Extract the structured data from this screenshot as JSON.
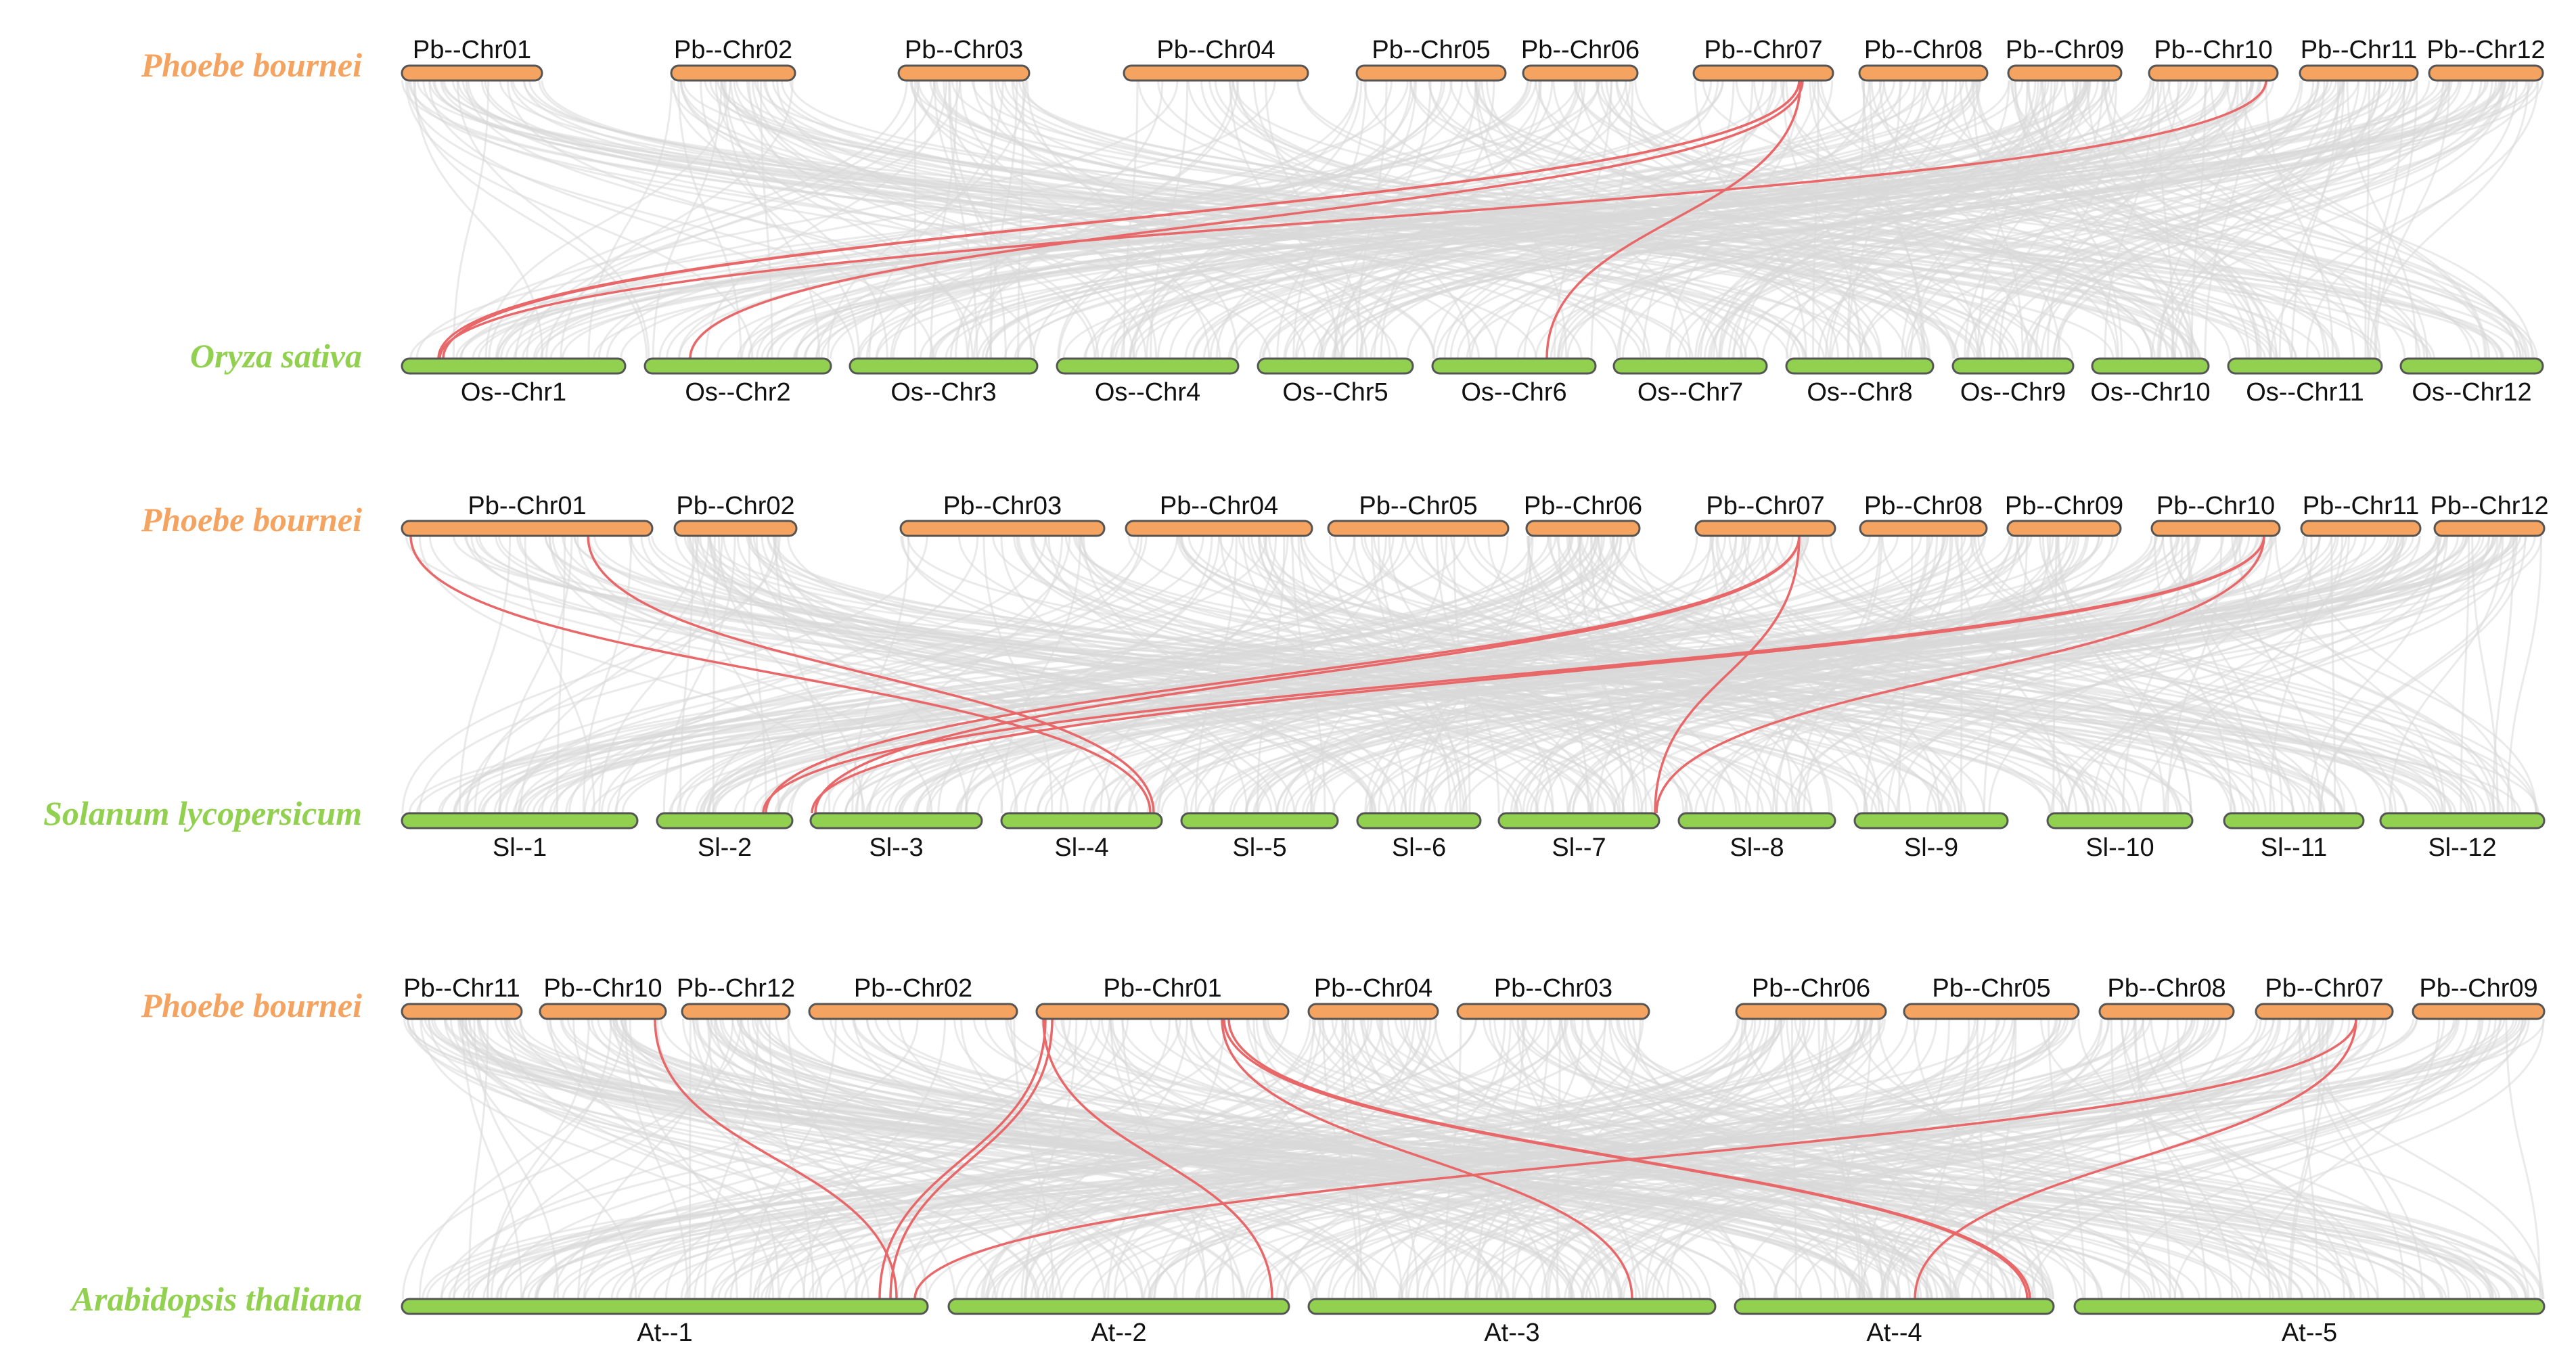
{
  "colors": {
    "top_track": "#f4a460",
    "bottom_track": "#92d050",
    "track_outline": "#555555",
    "grey_link": "#d9d9d9",
    "red_link": "#e8686a",
    "top_species_label": "#f4a460",
    "bottom_species_label": "#92d050"
  },
  "panels": [
    {
      "top_species": "Phoebe bournei",
      "bottom_species": "Oryza sativa",
      "top_chromosomes": [
        "Pb--Chr01",
        "Pb--Chr02",
        "Pb--Chr03",
        "Pb--Chr04",
        "Pb--Chr05",
        "Pb--Chr06",
        "Pb--Chr07",
        "Pb--Chr08",
        "Pb--Chr09",
        "Pb--Chr10",
        "Pb--Chr11",
        "Pb--Chr12"
      ],
      "bottom_chromosomes": [
        "Os--Chr1",
        "Os--Chr2",
        "Os--Chr3",
        "Os--Chr4",
        "Os--Chr5",
        "Os--Chr6",
        "Os--Chr7",
        "Os--Chr8",
        "Os--Chr9",
        "Os--Chr10",
        "Os--Chr11",
        "Os--Chr12"
      ],
      "highlighted_links": [
        {
          "from": "Pb--Chr07",
          "to": "Os--Chr1"
        },
        {
          "from": "Pb--Chr07",
          "to": "Os--Chr1"
        },
        {
          "from": "Pb--Chr07",
          "to": "Os--Chr2"
        },
        {
          "from": "Pb--Chr07",
          "to": "Os--Chr6"
        },
        {
          "from": "Pb--Chr10",
          "to": "Os--Chr1"
        }
      ]
    },
    {
      "top_species": "Phoebe bournei",
      "bottom_species": "Solanum lycopersicum",
      "top_chromosomes": [
        "Pb--Chr01",
        "Pb--Chr02",
        "Pb--Chr03",
        "Pb--Chr04",
        "Pb--Chr05",
        "Pb--Chr06",
        "Pb--Chr07",
        "Pb--Chr08",
        "Pb--Chr09",
        "Pb--Chr10",
        "Pb--Chr11",
        "Pb--Chr12"
      ],
      "bottom_chromosomes": [
        "Sl--1",
        "Sl--2",
        "Sl--3",
        "Sl--4",
        "Sl--5",
        "Sl--6",
        "Sl--7",
        "Sl--8",
        "Sl--9",
        "Sl--10",
        "Sl--11",
        "Sl--12"
      ],
      "highlighted_links": [
        {
          "from": "Pb--Chr01",
          "to": "Sl--4"
        },
        {
          "from": "Pb--Chr01",
          "to": "Sl--4"
        },
        {
          "from": "Pb--Chr07",
          "to": "Sl--2"
        },
        {
          "from": "Pb--Chr07",
          "to": "Sl--3"
        },
        {
          "from": "Pb--Chr07",
          "to": "Sl--7"
        },
        {
          "from": "Pb--Chr10",
          "to": "Sl--2"
        },
        {
          "from": "Pb--Chr10",
          "to": "Sl--3"
        },
        {
          "from": "Pb--Chr10",
          "to": "Sl--7"
        }
      ]
    },
    {
      "top_species": "Phoebe bournei",
      "bottom_species": "Arabidopsis thaliana",
      "top_chromosomes": [
        "Pb--Chr11",
        "Pb--Chr10",
        "Pb--Chr12",
        "Pb--Chr02",
        "Pb--Chr01",
        "Pb--Chr04",
        "Pb--Chr03",
        "Pb--Chr06",
        "Pb--Chr05",
        "Pb--Chr08",
        "Pb--Chr07",
        "Pb--Chr09"
      ],
      "bottom_chromosomes": [
        "At--1",
        "At--2",
        "At--3",
        "At--4",
        "At--5"
      ],
      "highlighted_links": [
        {
          "from": "Pb--Chr10",
          "to": "At--1"
        },
        {
          "from": "Pb--Chr01",
          "to": "At--1"
        },
        {
          "from": "Pb--Chr01",
          "to": "At--1"
        },
        {
          "from": "Pb--Chr01",
          "to": "At--2"
        },
        {
          "from": "Pb--Chr01",
          "to": "At--3"
        },
        {
          "from": "Pb--Chr01",
          "to": "At--4"
        },
        {
          "from": "Pb--Chr01",
          "to": "At--4"
        },
        {
          "from": "Pb--Chr07",
          "to": "At--1"
        },
        {
          "from": "Pb--Chr07",
          "to": "At--4"
        }
      ]
    }
  ]
}
